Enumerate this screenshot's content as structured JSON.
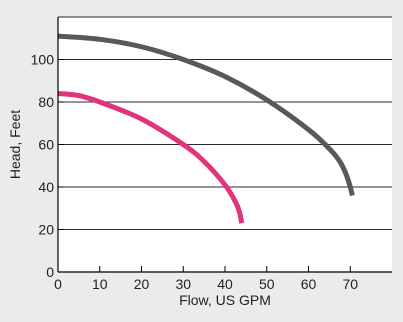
{
  "chart_data": {
    "type": "line",
    "title": "",
    "xlabel": "Flow, US GPM",
    "ylabel": "Head, Feet",
    "xlim": [
      0,
      80
    ],
    "ylim": [
      0,
      120
    ],
    "x_ticks": [
      "0",
      "10",
      "20",
      "30",
      "40",
      "50",
      "60",
      "70"
    ],
    "y_ticks": [
      "0",
      "20",
      "40",
      "60",
      "80",
      "100"
    ],
    "grid": "horizontal",
    "legend": "none",
    "series": [
      {
        "color": "#58595b",
        "points": [
          [
            0,
            111
          ],
          [
            10,
            109.5
          ],
          [
            20,
            106
          ],
          [
            30,
            100
          ],
          [
            40,
            92
          ],
          [
            50,
            81
          ],
          [
            60,
            67
          ],
          [
            65,
            58
          ],
          [
            67.5,
            52
          ],
          [
            69,
            46
          ],
          [
            70,
            40
          ],
          [
            70.5,
            36
          ]
        ]
      },
      {
        "color": "#e2337d",
        "points": [
          [
            0,
            84
          ],
          [
            5,
            83
          ],
          [
            10,
            80
          ],
          [
            20,
            72
          ],
          [
            30,
            60
          ],
          [
            35,
            52
          ],
          [
            40,
            41
          ],
          [
            42.5,
            33
          ],
          [
            43.5,
            28
          ],
          [
            44,
            23
          ]
        ]
      }
    ]
  }
}
